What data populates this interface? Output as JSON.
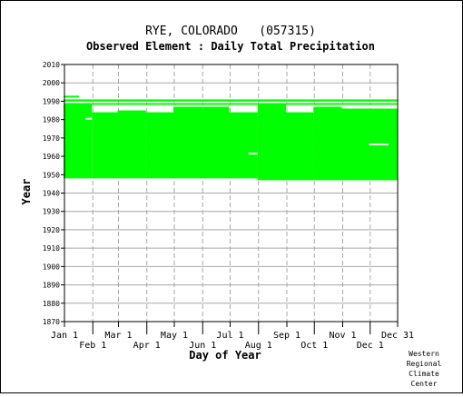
{
  "chart_data": {
    "type": "heatmap",
    "title": "RYE, COLORADO   (057315)",
    "subtitle": "Observed Element : Daily Total Precipitation",
    "xlabel": "Day of Year",
    "ylabel": "Year",
    "ylim": [
      1870,
      2010
    ],
    "xlim": [
      1,
      365
    ],
    "grid": true,
    "color": "#00ff00",
    "x_ticks_upper": [
      {
        "label": "Jan 1",
        "day": 1
      },
      {
        "label": "Mar 1",
        "day": 60
      },
      {
        "label": "May 1",
        "day": 121
      },
      {
        "label": "Jul 1",
        "day": 182
      },
      {
        "label": "Sep 1",
        "day": 244
      },
      {
        "label": "Nov 1",
        "day": 305
      },
      {
        "label": "Dec 31",
        "day": 365
      }
    ],
    "x_ticks_lower": [
      {
        "label": "Feb 1",
        "day": 32
      },
      {
        "label": "Apr 1",
        "day": 91
      },
      {
        "label": "Jun 1",
        "day": 152
      },
      {
        "label": "Aug 1",
        "day": 213
      },
      {
        "label": "Oct 1",
        "day": 274
      },
      {
        "label": "Dec 1",
        "day": 335
      }
    ],
    "y_ticks": [
      1870,
      1880,
      1890,
      1900,
      1910,
      1920,
      1930,
      1940,
      1950,
      1960,
      1970,
      1980,
      1990,
      2000,
      2010
    ],
    "coverage": [
      {
        "day_start": 1,
        "day_end": 31,
        "year_start": 1948,
        "year_end": 1987
      },
      {
        "day_start": 32,
        "day_end": 59,
        "year_start": 1948,
        "year_end": 1983
      },
      {
        "day_start": 60,
        "day_end": 90,
        "year_start": 1948,
        "year_end": 1984
      },
      {
        "day_start": 91,
        "day_end": 120,
        "year_start": 1948,
        "year_end": 1983
      },
      {
        "day_start": 121,
        "day_end": 181,
        "year_start": 1948,
        "year_end": 1986
      },
      {
        "day_start": 182,
        "day_end": 212,
        "year_start": 1948,
        "year_end": 1983
      },
      {
        "day_start": 213,
        "day_end": 243,
        "year_start": 1947,
        "year_end": 1987
      },
      {
        "day_start": 244,
        "day_end": 273,
        "year_start": 1947,
        "year_end": 1983
      },
      {
        "day_start": 274,
        "day_end": 304,
        "year_start": 1947,
        "year_end": 1986
      },
      {
        "day_start": 305,
        "day_end": 365,
        "year_start": 1947,
        "year_end": 1985
      },
      {
        "day_start": 1,
        "day_end": 365,
        "year_start": 1988,
        "year_end": 1988
      },
      {
        "day_start": 1,
        "day_end": 365,
        "year_start": 1990,
        "year_end": 1990
      },
      {
        "day_start": 1,
        "day_end": 17,
        "year_start": 1992,
        "year_end": 1992
      }
    ],
    "gaps": [
      {
        "day_start": 203,
        "day_end": 212,
        "year": 1961
      },
      {
        "day_start": 335,
        "day_end": 355,
        "year": 1966
      },
      {
        "day_start": 25,
        "day_end": 31,
        "year": 1980
      }
    ]
  },
  "credit": [
    "Western",
    "Regional",
    "Climate",
    "Center"
  ]
}
